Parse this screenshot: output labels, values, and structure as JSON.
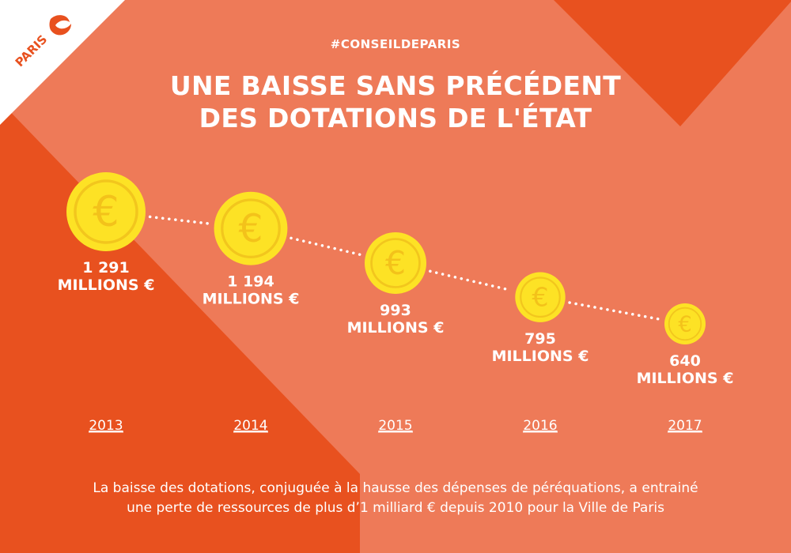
{
  "header": {
    "hashtag": "#CONSEILDEPARIS",
    "title_line1": "UNE BAISSE SANS PRÉCÉDENT",
    "title_line2": "DES DOTATIONS DE L'ÉTAT"
  },
  "logo": {
    "text": "PARIS"
  },
  "chart_data": {
    "type": "scatter",
    "categories": [
      "2013",
      "2014",
      "2015",
      "2016",
      "2017"
    ],
    "values": [
      1291,
      1194,
      993,
      795,
      640
    ],
    "value_labels": [
      [
        "1 291",
        "MILLIONS €"
      ],
      [
        "1 194",
        "MILLIONS €"
      ],
      [
        "993",
        "MILLIONS €"
      ],
      [
        "795",
        "MILLIONS €"
      ],
      [
        "640",
        "MILLIONS €"
      ]
    ],
    "marker_symbol": "€",
    "connector": "dotted"
  },
  "footer": {
    "line1": "La baisse des dotations, conjuguée à la hausse des dépenses de péréquations, a entrainé",
    "line2": "une perte de ressources de plus d’1 milliard € depuis 2010 pour la Ville de Paris"
  },
  "colors": {
    "background": "#ee7a58",
    "dark_orange": "#e8511f",
    "coin_fill": "#fde225",
    "coin_ring": "#f2c61d",
    "coin_symbol": "#f3c21a",
    "text": "#ffffff"
  }
}
